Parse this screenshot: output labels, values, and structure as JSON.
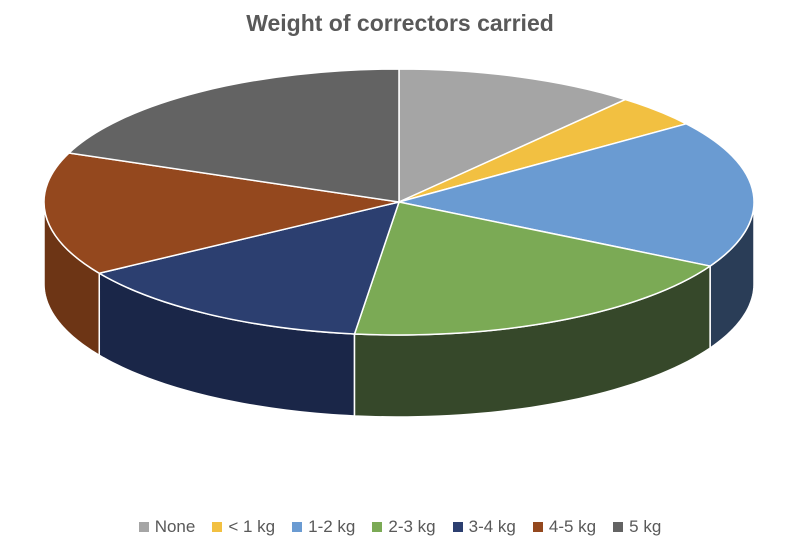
{
  "chart_data": {
    "type": "pie",
    "style": "3d",
    "title": "Weight of correctors carried",
    "legend_position": "bottom",
    "slices": [
      {
        "label": "None",
        "value": 11,
        "color": "#A5A5A5",
        "side": "#7c7c7c"
      },
      {
        "label": "< 1 kg",
        "value": 4,
        "color": "#F2C041",
        "side": "#b58f2f"
      },
      {
        "label": "1-2 kg",
        "value": 18,
        "color": "#6A9BD2",
        "side": "#2a3d57"
      },
      {
        "label": "2-3 kg",
        "value": 19,
        "color": "#7BAA55",
        "side": "#36482a"
      },
      {
        "label": "3-4 kg",
        "value": 14,
        "color": "#2C3F70",
        "side": "#1a2648"
      },
      {
        "label": "4-5 kg",
        "value": 15,
        "color": "#94481E",
        "side": "#6d3515"
      },
      {
        "label": "5 kg",
        "value": 19,
        "color": "#636363",
        "side": "#454545"
      }
    ]
  }
}
